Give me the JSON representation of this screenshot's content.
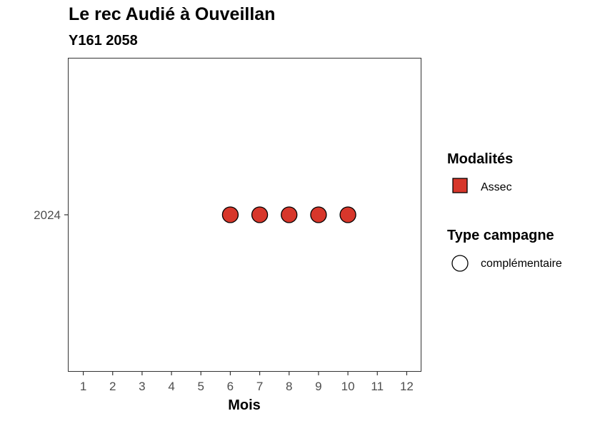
{
  "chart_data": {
    "type": "scatter",
    "title": "Le rec Audié à Ouveillan",
    "subtitle": "Y161 2058",
    "xlabel": "Mois",
    "ylabel": "",
    "x_ticks": [
      1,
      2,
      3,
      4,
      5,
      6,
      7,
      8,
      9,
      10,
      11,
      12
    ],
    "xlim": [
      0.5,
      12.5
    ],
    "y_categories": [
      "2024"
    ],
    "grid": false,
    "legend_position": "right",
    "series": [
      {
        "modalite": "Assec",
        "type_campagne": "complémentaire",
        "color": "#d7372b",
        "points": [
          {
            "x": 6,
            "y": "2024"
          },
          {
            "x": 7,
            "y": "2024"
          },
          {
            "x": 8,
            "y": "2024"
          },
          {
            "x": 9,
            "y": "2024"
          },
          {
            "x": 10,
            "y": "2024"
          }
        ]
      }
    ],
    "legends": [
      {
        "title": "Modalités",
        "shape": "square",
        "items": [
          {
            "label": "Assec",
            "color": "#d7372b"
          }
        ]
      },
      {
        "title": "Type campagne",
        "shape": "circle",
        "items": [
          {
            "label": "complémentaire",
            "color": "#ffffff"
          }
        ]
      }
    ]
  }
}
